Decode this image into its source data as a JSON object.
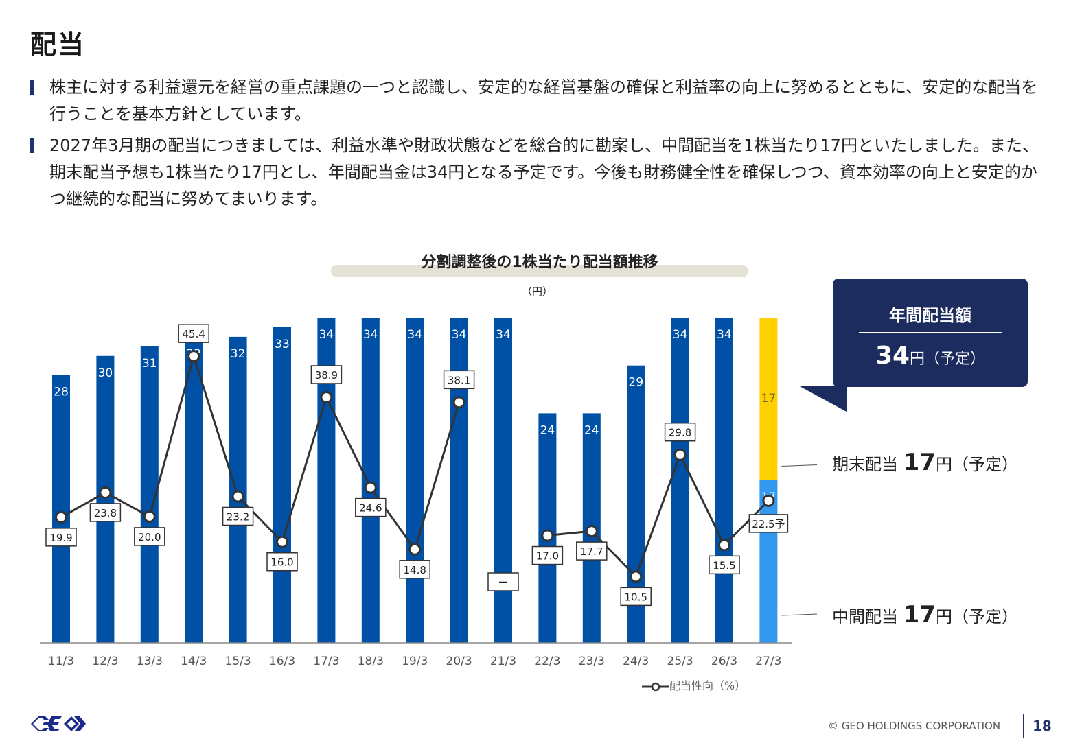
{
  "page": {
    "title": "配当",
    "bullets": [
      "株主に対する利益還元を経営の重点課題の一つと認識し、安定的な経営基盤の確保と利益率の向上に努めるとともに、安定的な配当を行うことを基本方針としています。",
      "2027年3月期の配当につきましては、利益水準や財政状態などを総合的に勘案し、中間配当を1株当たり17円といたしました。また、期末配当予想も1株当たり17円とし、年間配当金は34円となる予定です。今後も財務健全性を確保しつつ、資本効率の向上と安定的かつ継続的な配当に努めてまいります。"
    ],
    "footer_copyright": "© GEO HOLDINGS CORPORATION",
    "page_number": "18"
  },
  "chart_labels": {
    "unit": "（円）",
    "legend": "配当性向（%）"
  },
  "callout": {
    "title": "年間配当額",
    "value": "34",
    "suffix": "円（予定）"
  },
  "side_labels": {
    "year_end": {
      "prefix": "期末配当",
      "value": "17",
      "suffix": "円（予定）"
    },
    "interim": {
      "prefix": "中間配当",
      "value": "17",
      "suffix": "円（予定）"
    }
  },
  "colors": {
    "bar": "#0050a5",
    "interim_forecast": "#3399ee",
    "year_end_forecast": "#ffd100",
    "line": "#333333",
    "callout_bg": "#1c2c5e"
  },
  "chart_data": {
    "type": "bar",
    "title": "分割調整後の1株当たり配当額推移",
    "ylabel": "（円）",
    "categories": [
      "11/3",
      "12/3",
      "13/3",
      "14/3",
      "15/3",
      "16/3",
      "17/3",
      "18/3",
      "19/3",
      "20/3",
      "21/3",
      "22/3",
      "23/3",
      "24/3",
      "25/3",
      "26/3",
      "27/3"
    ],
    "series": [
      {
        "name": "",
        "values": [
          28,
          30,
          31,
          32,
          32,
          33,
          34,
          34,
          34,
          34,
          34,
          24,
          24,
          29,
          34,
          34,
          null
        ],
        "labels": [
          "28",
          "30",
          "31",
          "32",
          "32",
          "33",
          "34",
          "34",
          "34",
          "34",
          "34",
          "24",
          "24",
          "29",
          "34",
          "34",
          ""
        ]
      },
      {
        "name": "中間配当",
        "values": [
          null,
          null,
          null,
          null,
          null,
          null,
          null,
          null,
          null,
          null,
          null,
          null,
          null,
          null,
          null,
          null,
          17
        ],
        "labels": [
          "",
          "",
          "",
          "",
          "",
          "",
          "",
          "",
          "",
          "",
          "",
          "",
          "",
          "",
          "",
          "",
          "17"
        ]
      },
      {
        "name": "期末配当",
        "values": [
          null,
          null,
          null,
          null,
          null,
          null,
          null,
          null,
          null,
          null,
          null,
          null,
          null,
          null,
          null,
          null,
          17
        ],
        "labels": [
          "",
          "",
          "",
          "",
          "",
          "",
          "",
          "",
          "",
          "",
          "",
          "",
          "",
          "",
          "",
          "",
          "17"
        ]
      },
      {
        "name": "配当性向（%）",
        "type": "line",
        "values": [
          19.9,
          23.8,
          20.0,
          45.4,
          23.2,
          16.0,
          38.9,
          24.6,
          14.8,
          38.1,
          null,
          17.0,
          17.7,
          10.5,
          29.8,
          15.5,
          22.5
        ],
        "labels": [
          "19.9",
          "23.8",
          "20.0",
          "45.4",
          "23.2",
          "16.0",
          "38.9",
          "24.6",
          "14.8",
          "38.1",
          "ー",
          "17.0",
          "17.7",
          "10.5",
          "29.8",
          "15.5",
          "22.5予"
        ]
      }
    ],
    "ylim": [
      0,
      34
    ],
    "grid": false,
    "legend": "bottom-right"
  }
}
